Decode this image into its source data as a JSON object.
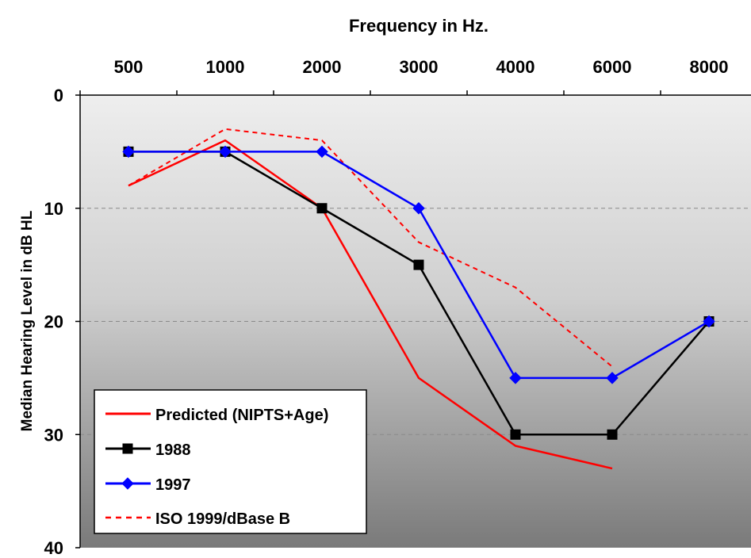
{
  "chart_data": {
    "type": "line",
    "title": "",
    "xlabel": "Frequency in Hz.",
    "ylabel": "Median Hearing Level in dB HL",
    "categories": [
      "500",
      "1000",
      "2000",
      "3000",
      "4000",
      "6000",
      "8000"
    ],
    "yticks": [
      "0",
      "10",
      "20",
      "30",
      "40"
    ],
    "ylim": [
      0,
      40
    ],
    "y_inverted": true,
    "x_axis_position": "top",
    "grid": "horizontal dashed",
    "legend_position": "bottom-left",
    "series": [
      {
        "name": "Predicted (NIPTS+Age)",
        "values": [
          8,
          4,
          10,
          25,
          31,
          33,
          null
        ],
        "color": "#ff0000",
        "style": "solid",
        "marker": "none"
      },
      {
        "name": "1988",
        "values": [
          5,
          5,
          10,
          15,
          30,
          30,
          20
        ],
        "color": "#000000",
        "style": "solid",
        "marker": "square"
      },
      {
        "name": "1997",
        "values": [
          5,
          5,
          5,
          10,
          25,
          25,
          20
        ],
        "color": "#0000ff",
        "style": "solid",
        "marker": "diamond"
      },
      {
        "name": "ISO 1999/dBase B",
        "values": [
          8,
          3,
          4,
          13,
          17,
          24,
          null
        ],
        "color": "#ff0000",
        "style": "dashed",
        "marker": "none"
      }
    ]
  }
}
